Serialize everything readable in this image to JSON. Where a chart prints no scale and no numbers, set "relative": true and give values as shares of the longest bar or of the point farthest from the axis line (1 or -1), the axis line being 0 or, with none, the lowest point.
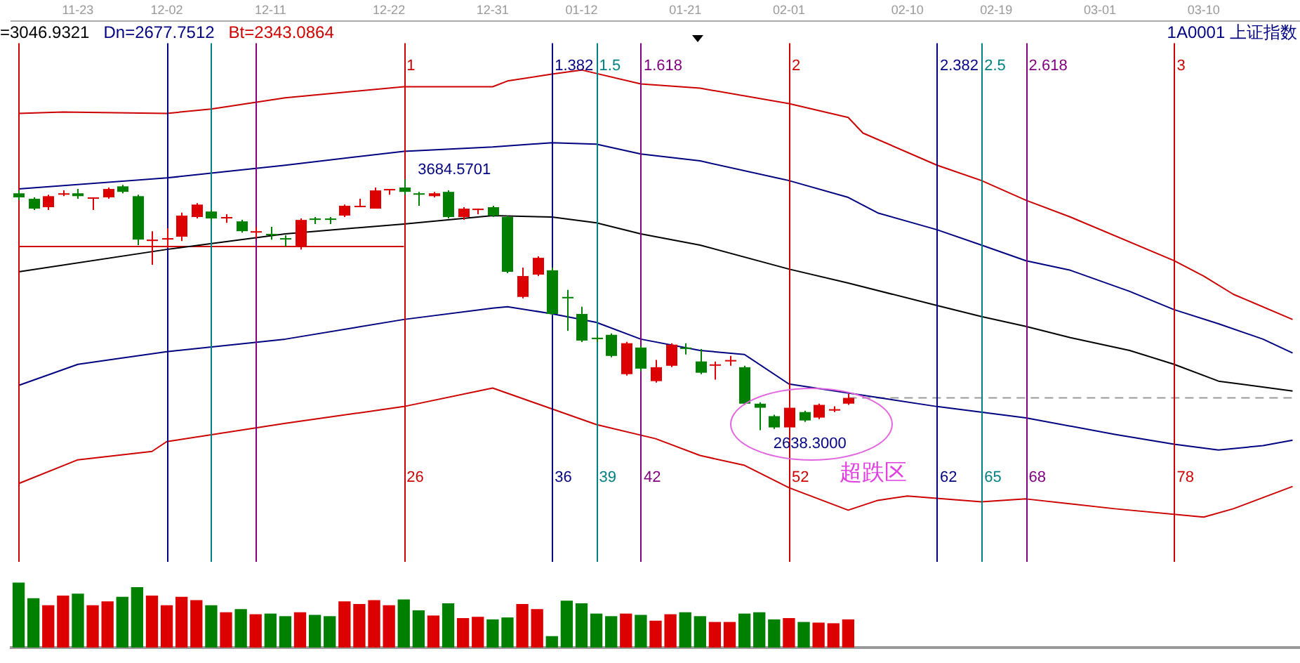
{
  "chart_data": [
    {
      "type": "candlestick",
      "subtitle": "1A0001 上证指数",
      "tick_labels": "x",
      "marker": "none",
      "categories": [
        null,
        null,
        null,
        null,
        "11-23",
        null,
        null,
        null,
        null,
        null,
        "12-02",
        null,
        null,
        null,
        null,
        null,
        null,
        "12-11",
        null,
        null,
        null,
        null,
        null,
        null,
        null,
        "12-22",
        null,
        null,
        null,
        null,
        null,
        null,
        "12-31",
        null,
        null,
        null,
        null,
        null,
        "01-12",
        null,
        null,
        null,
        null,
        null,
        null,
        "01-21",
        null,
        null,
        null,
        null,
        null,
        null,
        "02-01",
        null,
        null,
        null,
        null,
        null,
        null,
        null,
        "02-10",
        null,
        null,
        null,
        null,
        null,
        "02-19",
        null,
        null,
        null,
        null,
        null,
        null,
        "03-01",
        null,
        null,
        null,
        null,
        null,
        null,
        "03-10",
        null,
        null,
        null,
        null,
        null,
        null
      ],
      "ohlc": [
        [
          3626,
          3638,
          3597,
          3609
        ],
        [
          3603,
          3609,
          3556,
          3562
        ],
        [
          3568,
          3620,
          3556,
          3614
        ],
        [
          3620,
          3638,
          3614,
          3626
        ],
        [
          3626,
          3644,
          3603,
          3614
        ],
        [
          3603,
          3609,
          3556,
          3609
        ],
        [
          3609,
          3650,
          3603,
          3644
        ],
        [
          3655,
          3661,
          3626,
          3632
        ],
        [
          3614,
          3620,
          3410,
          3433
        ],
        [
          3427,
          3468,
          3328,
          3433
        ],
        [
          3433,
          3480,
          3398,
          3439
        ],
        [
          3445,
          3545,
          3427,
          3533
        ],
        [
          3527,
          3585,
          3521,
          3579
        ],
        [
          3550,
          3556,
          3515,
          3521
        ],
        [
          3521,
          3539,
          3503,
          3527
        ],
        [
          3509,
          3515,
          3462,
          3468
        ],
        [
          3462,
          3486,
          3439,
          3468
        ],
        [
          3457,
          3486,
          3433,
          3451
        ],
        [
          3439,
          3451,
          3404,
          3433
        ],
        [
          3404,
          3521,
          3392,
          3515
        ],
        [
          3521,
          3527,
          3498,
          3515
        ],
        [
          3521,
          3527,
          3498,
          3515
        ],
        [
          3533,
          3579,
          3527,
          3574
        ],
        [
          3568,
          3603,
          3568,
          3574
        ],
        [
          3562,
          3650,
          3562,
          3638
        ],
        [
          3638,
          3644,
          3620,
          3644
        ],
        [
          3650,
          3684.5701,
          3620,
          3632
        ],
        [
          3626,
          3632,
          3574,
          3620
        ],
        [
          3614,
          3632,
          3609,
          3626
        ],
        [
          3632,
          3638,
          3521,
          3527
        ],
        [
          3527,
          3568,
          3515,
          3562
        ],
        [
          3556,
          3562,
          3539,
          3562
        ],
        [
          3568,
          3574,
          3527,
          3533
        ],
        [
          3527,
          3533,
          3293,
          3299
        ],
        [
          3194,
          3316,
          3188,
          3281
        ],
        [
          3287,
          3363,
          3281,
          3357
        ],
        [
          3305,
          3316,
          3118,
          3123
        ],
        [
          3194,
          3223,
          3053,
          3188
        ],
        [
          3123,
          3153,
          3006,
          3012
        ],
        [
          3024,
          3030,
          3006,
          3018
        ],
        [
          3036,
          3042,
          2942,
          2948
        ],
        [
          2872,
          3007,
          2866,
          3001
        ],
        [
          2983,
          2989,
          2884,
          2895
        ],
        [
          2843,
          2931,
          2837,
          2901
        ],
        [
          2907,
          3001,
          2901,
          2995
        ],
        [
          2983,
          3001,
          2954,
          2977
        ],
        [
          2925,
          2977,
          2872,
          2878
        ],
        [
          2907,
          2925,
          2849,
          2913
        ],
        [
          2925,
          2948,
          2907,
          2931
        ],
        [
          2901,
          2907,
          2744,
          2749
        ],
        [
          2749,
          2755,
          2638.3,
          2732
        ],
        [
          2697,
          2703,
          2644,
          2650
        ],
        [
          2650,
          2738,
          2644,
          2732
        ],
        [
          2714,
          2720,
          2673,
          2679
        ],
        [
          2691,
          2749,
          2685,
          2744
        ],
        [
          2720,
          2738,
          2714,
          2726
        ],
        [
          2749,
          2790,
          2744,
          2773
        ],
        null,
        null,
        null,
        null,
        null,
        null,
        null,
        null,
        null,
        null,
        null,
        null,
        null,
        null,
        null,
        null,
        null,
        null,
        null,
        null,
        null,
        null,
        null,
        null,
        null,
        null,
        null,
        null,
        null,
        null
      ],
      "colors": [
        "#008000",
        "#008000",
        "#dd0000",
        "#dd0000",
        "#008000",
        "#dd0000",
        "#dd0000",
        "#008000",
        "#008000",
        "#dd0000",
        "#dd0000",
        "#dd0000",
        "#dd0000",
        "#008000",
        "#dd0000",
        "#008000",
        "#dd0000",
        "#008000",
        "#008000",
        "#dd0000",
        "#008000",
        "#008000",
        "#dd0000",
        "#dd0000",
        "#dd0000",
        "#dd0000",
        "#008000",
        "#008000",
        "#dd0000",
        "#008000",
        "#dd0000",
        "#dd0000",
        "#008000",
        "#008000",
        "#dd0000",
        "#dd0000",
        "#008000",
        "#008000",
        "#008000",
        "#008000",
        "#008000",
        "#dd0000",
        "#008000",
        "#dd0000",
        "#dd0000",
        "#008000",
        "#008000",
        "#dd0000",
        "#dd0000",
        "#008000",
        "#008000",
        "#008000",
        "#dd0000",
        "#008000",
        "#dd0000",
        "#dd0000",
        "#dd0000",
        null,
        null,
        null,
        null,
        null,
        null,
        null,
        null,
        null,
        null,
        null,
        null,
        null,
        null,
        null,
        null,
        null,
        null,
        null,
        null,
        null,
        null,
        null,
        null,
        null,
        null,
        null,
        null,
        null,
        null
      ],
      "series": [
        {
          "type": "line",
          "color": "#cc0000",
          "values": [
            3959,
            null,
            null,
            3965,
            null,
            null,
            null,
            null,
            null,
            null,
            3959,
            null,
            null,
            3977,
            null,
            null,
            null,
            null,
            4024,
            null,
            null,
            null,
            null,
            null,
            null,
            null,
            4070,
            null,
            null,
            null,
            null,
            null,
            4070,
            4094,
            null,
            null,
            4123,
            null,
            4140,
            null,
            null,
            null,
            4082,
            null,
            null,
            null,
            4064,
            null,
            null,
            null,
            null,
            null,
            4000,
            null,
            null,
            null,
            3942,
            3877,
            null,
            null,
            null,
            null,
            3743,
            null,
            null,
            3679,
            null,
            null,
            3597,
            null,
            null,
            3527,
            null,
            null,
            null,
            null,
            null,
            null,
            3345,
            null,
            3281,
            null,
            3205,
            null,
            null,
            null,
            3100
          ]
        },
        {
          "type": "line",
          "color": "#000080",
          "values": [
            3644,
            null,
            null,
            null,
            null,
            null,
            null,
            null,
            null,
            null,
            3690,
            null,
            null,
            null,
            null,
            null,
            null,
            null,
            3743,
            null,
            null,
            null,
            null,
            null,
            null,
            null,
            3801,
            null,
            null,
            null,
            null,
            null,
            3819,
            null,
            null,
            null,
            3837,
            null,
            null,
            3831,
            null,
            null,
            3790,
            null,
            null,
            null,
            3761,
            null,
            null,
            null,
            null,
            null,
            3679,
            null,
            null,
            null,
            3609,
            null,
            3544,
            null,
            null,
            null,
            3474,
            null,
            null,
            3410,
            null,
            null,
            3345,
            null,
            null,
            3305,
            null,
            null,
            null,
            3217,
            null,
            null,
            3141,
            null,
            null,
            3082,
            null,
            null,
            3018,
            null,
            2960
          ]
        },
        {
          "type": "line",
          "color": "#000000",
          "values": [
            3299,
            null,
            null,
            null,
            null,
            null,
            null,
            null,
            null,
            null,
            3392,
            null,
            null,
            null,
            null,
            null,
            null,
            null,
            3457,
            null,
            null,
            null,
            null,
            null,
            null,
            null,
            3498,
            null,
            null,
            null,
            null,
            null,
            3533,
            null,
            null,
            null,
            3527,
            null,
            null,
            3503,
            null,
            null,
            3457,
            null,
            null,
            null,
            3410,
            null,
            null,
            null,
            null,
            null,
            3310,
            null,
            null,
            null,
            3252,
            null,
            null,
            null,
            null,
            null,
            3158,
            null,
            null,
            3112,
            null,
            null,
            3071,
            null,
            null,
            3024,
            null,
            null,
            null,
            2971,
            null,
            null,
            2913,
            null,
            null,
            2843,
            null,
            null,
            null,
            null,
            2802
          ]
        },
        {
          "type": "line",
          "color": "#000080",
          "values": [
            2825,
            null,
            null,
            null,
            2913,
            null,
            null,
            null,
            null,
            null,
            2966,
            null,
            null,
            null,
            null,
            null,
            null,
            null,
            3018,
            null,
            null,
            null,
            null,
            null,
            null,
            null,
            3100,
            null,
            null,
            null,
            null,
            null,
            3147,
            3153,
            null,
            null,
            3124,
            null,
            null,
            3088,
            null,
            null,
            3018,
            null,
            null,
            null,
            2971,
            null,
            null,
            2954,
            null,
            null,
            2831,
            null,
            null,
            null,
            null,
            null,
            null,
            null,
            null,
            null,
            2737,
            null,
            null,
            null,
            null,
            null,
            2690,
            null,
            null,
            null,
            null,
            null,
            2621,
            null,
            null,
            null,
            2580,
            null,
            null,
            2556,
            null,
            null,
            2574,
            null,
            2597
          ]
        },
        {
          "type": "line",
          "color": "#cc0000",
          "values": [
            2416,
            null,
            null,
            null,
            2515,
            null,
            null,
            null,
            null,
            2550,
            2591,
            null,
            null,
            null,
            null,
            null,
            null,
            null,
            2667,
            null,
            null,
            null,
            null,
            null,
            null,
            null,
            2737,
            null,
            null,
            null,
            null,
            null,
            2814,
            null,
            null,
            2749,
            null,
            null,
            null,
            2662,
            null,
            null,
            null,
            2603,
            null,
            null,
            2533,
            null,
            null,
            2492,
            null,
            null,
            2399,
            null,
            null,
            null,
            2305,
            null,
            2346,
            null,
            2364,
            null,
            null,
            null,
            null,
            2340,
            null,
            null,
            2352,
            null,
            null,
            null,
            null,
            null,
            2311,
            null,
            null,
            null,
            null,
            null,
            2276,
            null,
            2311,
            null,
            null,
            null,
            2404
          ]
        },
        {
          "type": "line",
          "color": "#cc0000",
          "values": [
            3404,
            null,
            null,
            null,
            null,
            null,
            null,
            null,
            null,
            null,
            null,
            null,
            null,
            null,
            null,
            null,
            null,
            null,
            null,
            null,
            null,
            null,
            null,
            null,
            null,
            null,
            3404,
            null,
            null,
            null,
            null,
            null,
            null,
            null,
            null,
            null,
            null,
            null,
            null,
            null,
            null,
            null,
            null,
            null,
            null,
            null,
            null,
            null,
            null,
            null,
            null,
            null,
            null,
            null,
            null,
            null,
            null,
            null,
            null,
            null,
            null,
            null,
            null,
            null,
            null,
            null,
            null,
            null,
            null,
            null,
            null,
            null,
            null,
            null,
            null,
            null,
            null,
            null,
            null,
            null,
            null,
            null,
            null,
            null,
            null,
            null,
            null
          ]
        },
        {
          "type": "line",
          "color": "#999999",
          "line_style": "dashed",
          "values": [
            null,
            null,
            null,
            null,
            null,
            null,
            null,
            null,
            null,
            null,
            null,
            null,
            null,
            null,
            null,
            null,
            null,
            null,
            null,
            null,
            null,
            null,
            null,
            null,
            null,
            null,
            null,
            null,
            null,
            null,
            null,
            null,
            null,
            null,
            null,
            null,
            null,
            null,
            null,
            null,
            null,
            null,
            null,
            null,
            null,
            null,
            null,
            null,
            null,
            null,
            null,
            null,
            null,
            null,
            null,
            null,
            2773,
            null,
            null,
            null,
            null,
            null,
            null,
            null,
            null,
            null,
            null,
            null,
            null,
            null,
            null,
            null,
            null,
            null,
            null,
            null,
            null,
            null,
            null,
            null,
            null,
            null,
            null,
            null,
            null,
            null,
            2773
          ]
        }
      ],
      "annotations": [
        "=3046.9321",
        "Dn=2677.7512",
        "Bt=2343.0864",
        "超跌区",
        "1",
        "1.382",
        "1.5",
        "1.618",
        "2",
        "2.382",
        "2.5",
        "2.618",
        "3",
        "26",
        "36",
        "39",
        "42",
        "52",
        "62",
        "65",
        "68",
        "78",
        "3684.5701",
        "2638.3000"
      ]
    },
    {
      "type": "bar",
      "relative": true,
      "tick_labels": false,
      "categories": [
        null,
        null,
        null,
        null,
        null,
        null,
        null,
        null,
        null,
        null,
        null,
        null,
        null,
        null,
        null,
        null,
        null,
        null,
        null,
        null,
        null,
        null,
        null,
        null,
        null,
        null,
        null,
        null,
        null,
        null,
        null,
        null,
        null,
        null,
        null,
        null,
        null,
        null,
        null,
        null,
        null,
        null,
        null,
        null,
        null,
        null,
        null,
        null,
        null,
        null,
        null,
        null,
        null,
        null,
        null,
        null,
        null,
        null,
        null,
        null,
        null,
        null,
        null,
        null,
        null,
        null,
        null,
        null,
        null,
        null,
        null,
        null,
        null,
        null,
        null,
        null,
        null,
        null,
        null,
        null,
        null,
        null,
        null,
        null,
        null,
        null,
        null
      ],
      "values": [
        1,
        0.76,
        0.65,
        0.8,
        0.83,
        0.65,
        0.71,
        0.78,
        0.93,
        0.8,
        0.65,
        0.78,
        0.73,
        0.65,
        0.54,
        0.59,
        0.51,
        0.52,
        0.48,
        0.54,
        0.5,
        0.48,
        0.71,
        0.67,
        0.73,
        0.65,
        0.74,
        0.57,
        0.49,
        0.68,
        0.45,
        0.47,
        0.43,
        0.46,
        0.67,
        0.59,
        0.17,
        0.72,
        0.68,
        0.52,
        0.48,
        0.52,
        0.5,
        0.41,
        0.51,
        0.54,
        0.48,
        0.39,
        0.39,
        0.52,
        0.54,
        0.43,
        0.45,
        0.39,
        0.38,
        0.37,
        0.43,
        null,
        null,
        null,
        null,
        null,
        null,
        null,
        null,
        null,
        null,
        null,
        null,
        null,
        null,
        null,
        null,
        null,
        null,
        null,
        null,
        null,
        null,
        null,
        null,
        null,
        null,
        null,
        null,
        null,
        null
      ],
      "colors": [
        "#008000",
        "#008000",
        "#dd0000",
        "#dd0000",
        "#008000",
        "#dd0000",
        "#dd0000",
        "#008000",
        "#008000",
        "#dd0000",
        "#dd0000",
        "#dd0000",
        "#dd0000",
        "#008000",
        "#dd0000",
        "#008000",
        "#dd0000",
        "#008000",
        "#008000",
        "#dd0000",
        "#008000",
        "#008000",
        "#dd0000",
        "#dd0000",
        "#dd0000",
        "#dd0000",
        "#008000",
        "#008000",
        "#dd0000",
        "#008000",
        "#dd0000",
        "#dd0000",
        "#008000",
        "#008000",
        "#dd0000",
        "#dd0000",
        "#008000",
        "#008000",
        "#008000",
        "#008000",
        "#008000",
        "#dd0000",
        "#008000",
        "#dd0000",
        "#dd0000",
        "#008000",
        "#008000",
        "#dd0000",
        "#dd0000",
        "#008000",
        "#008000",
        "#008000",
        "#dd0000",
        "#008000",
        "#dd0000",
        "#dd0000",
        "#dd0000",
        null,
        null,
        null,
        null,
        null,
        null,
        null,
        null,
        null,
        null,
        null,
        null,
        null,
        null,
        null,
        null,
        null,
        null,
        null,
        null,
        null,
        null,
        null,
        null,
        null,
        null,
        null,
        null,
        null,
        null
      ]
    }
  ]
}
